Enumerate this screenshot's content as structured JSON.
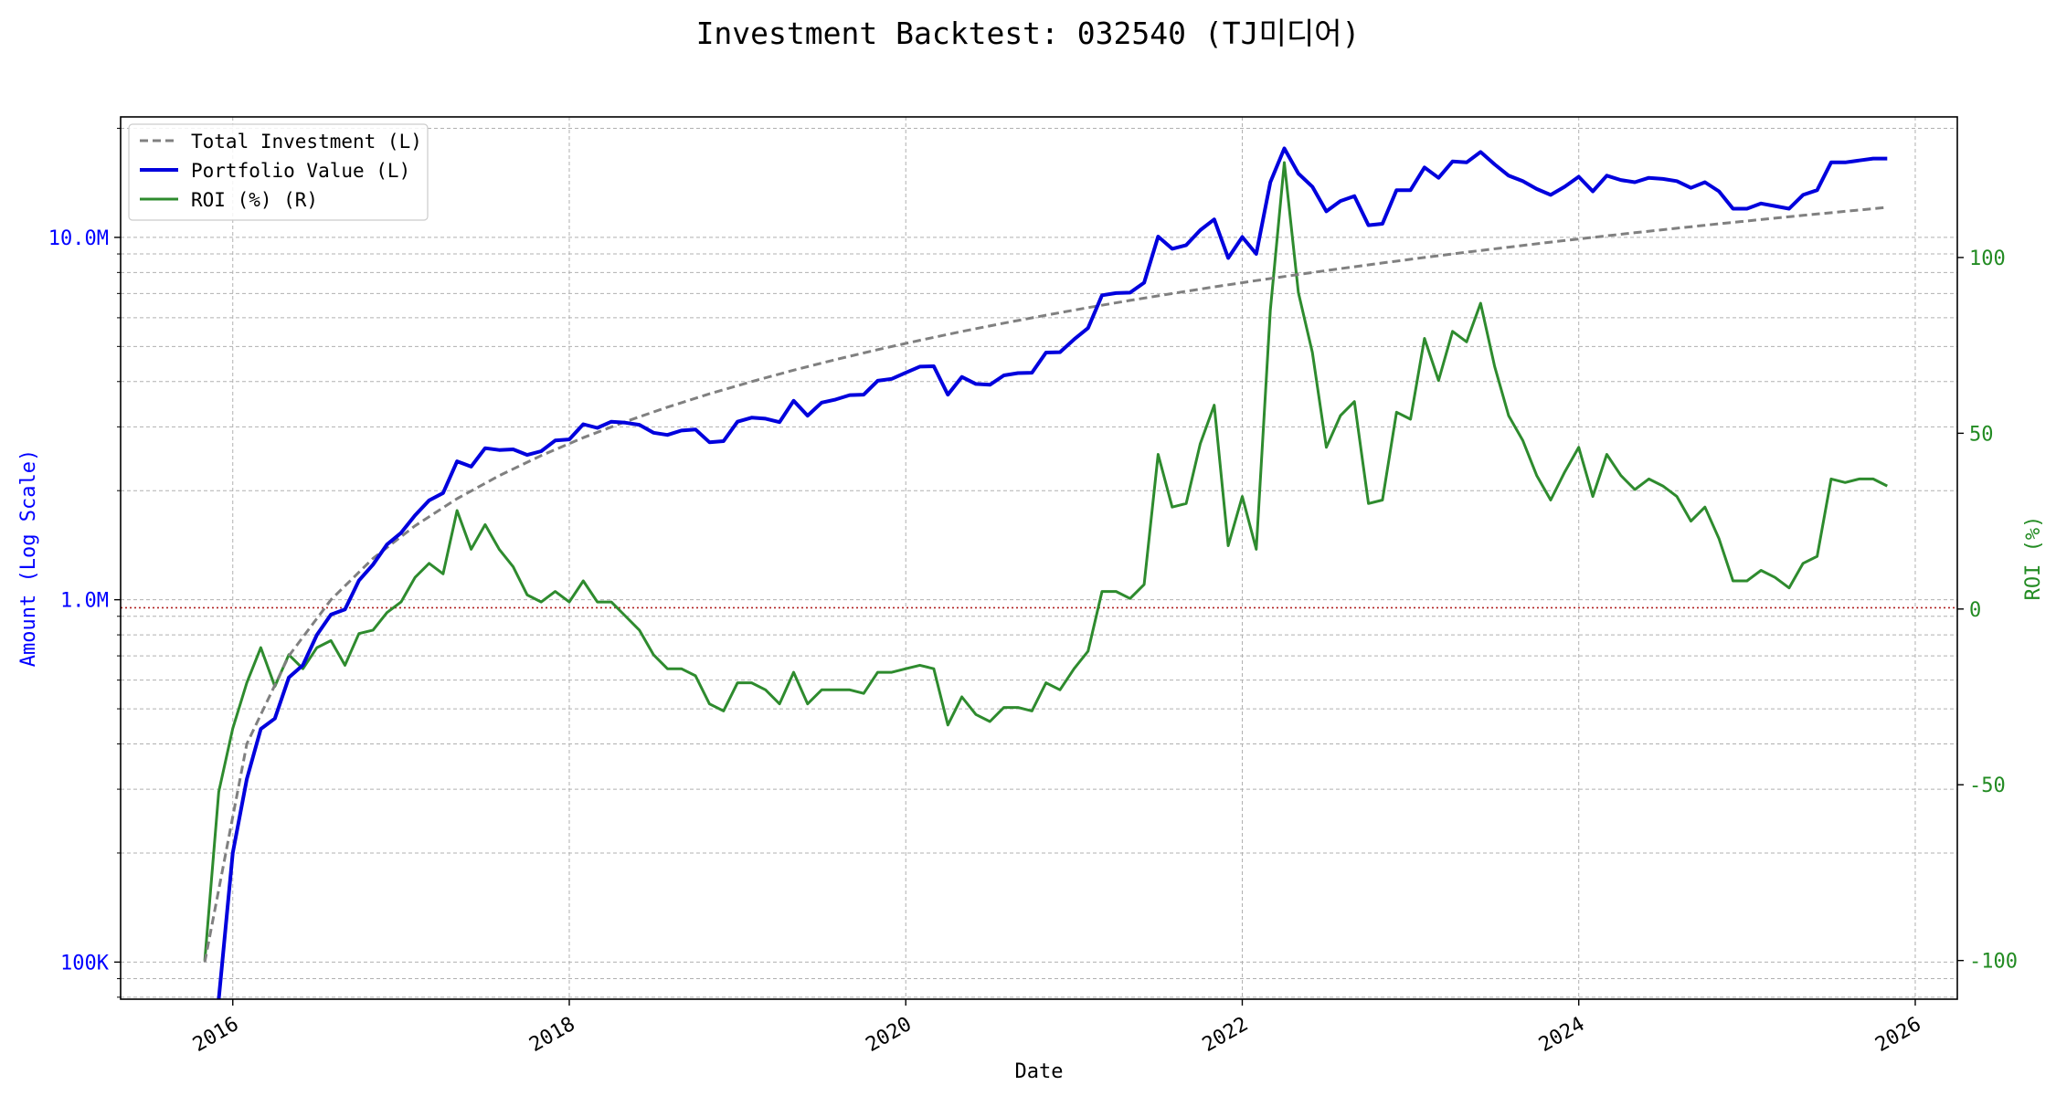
{
  "chart_data": {
    "type": "line",
    "title": "Investment Backtest: 032540 (TJ미디어)",
    "xlabel": "Date",
    "ylabel_left": "Amount (Log Scale)",
    "ylabel_right": "ROI (%)",
    "x_ticks": [
      "2016",
      "2018",
      "2020",
      "2022",
      "2024",
      "2026"
    ],
    "y_left_ticks": [
      {
        "value": 100000,
        "label": "100K"
      },
      {
        "value": 1000000,
        "label": "1.0M"
      },
      {
        "value": 10000000,
        "label": "10.0M"
      }
    ],
    "y_right_ticks": [
      {
        "value": -100,
        "label": "-100"
      },
      {
        "value": -50,
        "label": "-50"
      },
      {
        "value": 0,
        "label": "0"
      },
      {
        "value": 50,
        "label": "50"
      },
      {
        "value": 100,
        "label": "100"
      }
    ],
    "y_left_scale": "log",
    "y_left_range": [
      79000,
      21500000
    ],
    "y_right_range": [
      -111,
      140
    ],
    "x_range": [
      "2015-05-01",
      "2026-04-01"
    ],
    "grid": true,
    "legend_position": "top-left",
    "reference_line": {
      "axis": "left",
      "value": 950000,
      "style": "dotted",
      "color": "#b22222"
    },
    "colors": {
      "total_investment": "#808080",
      "portfolio_value": "#0000dd",
      "roi": "#2e8b2e"
    },
    "legend": [
      "Total Investment (L)",
      "Portfolio Value (L)",
      "ROI (%) (R)"
    ],
    "series": [
      {
        "name": "Total Investment (L)",
        "axis": "left",
        "style": "dashed",
        "x": [
          "2015-11",
          "2016-02",
          "2016-05",
          "2016-08",
          "2016-11",
          "2017-02",
          "2017-05",
          "2017-08",
          "2017-11",
          "2018-02",
          "2018-05",
          "2018-08",
          "2018-11",
          "2019-02",
          "2019-05",
          "2019-08",
          "2019-11",
          "2020-02",
          "2020-05",
          "2020-08",
          "2020-11",
          "2021-02",
          "2021-05",
          "2021-08",
          "2021-11",
          "2022-02",
          "2022-05",
          "2022-08",
          "2022-11",
          "2023-02",
          "2023-05",
          "2023-08",
          "2023-11",
          "2024-02",
          "2024-05",
          "2024-08",
          "2024-11",
          "2025-02",
          "2025-05",
          "2025-08",
          "2025-11"
        ],
        "y": [
          100000,
          400000,
          700000,
          1000000,
          1300000,
          1600000,
          1900000,
          2200000,
          2500000,
          2800000,
          3100000,
          3400000,
          3700000,
          4000000,
          4300000,
          4600000,
          4900000,
          5200000,
          5500000,
          5800000,
          6100000,
          6400000,
          6700000,
          7000000,
          7300000,
          7600000,
          7900000,
          8200000,
          8500000,
          8800000,
          9100000,
          9400000,
          9700000,
          10000000,
          10300000,
          10600000,
          10900000,
          11200000,
          11500000,
          11800000,
          12100000
        ]
      },
      {
        "name": "Portfolio Value (L)",
        "axis": "left",
        "style": "solid",
        "x": [
          "2015-12",
          "2016-01",
          "2016-02",
          "2016-03",
          "2016-04",
          "2016-05",
          "2016-06",
          "2016-07",
          "2016-08",
          "2016-09",
          "2016-10",
          "2016-11",
          "2016-12",
          "2017-01",
          "2017-02",
          "2017-03",
          "2017-04",
          "2017-05",
          "2017-06",
          "2017-07",
          "2017-08",
          "2017-09",
          "2017-10",
          "2017-11",
          "2017-12",
          "2018-01",
          "2018-02",
          "2018-03",
          "2018-04",
          "2018-05",
          "2018-06",
          "2018-07",
          "2018-08",
          "2018-09",
          "2018-10",
          "2018-11",
          "2018-12",
          "2019-01",
          "2019-02",
          "2019-03",
          "2019-04",
          "2019-05",
          "2019-06",
          "2019-07",
          "2019-08",
          "2019-09",
          "2019-10",
          "2019-11",
          "2019-12",
          "2020-01",
          "2020-02",
          "2020-03",
          "2020-04",
          "2020-05",
          "2020-06",
          "2020-07",
          "2020-08",
          "2020-09",
          "2020-10",
          "2020-11",
          "2020-12",
          "2021-01",
          "2021-02",
          "2021-03",
          "2021-04",
          "2021-05",
          "2021-06",
          "2021-07",
          "2021-08",
          "2021-09",
          "2021-10",
          "2021-11",
          "2021-12",
          "2022-01",
          "2022-02",
          "2022-03",
          "2022-04",
          "2022-05",
          "2022-06",
          "2022-07",
          "2022-08",
          "2022-09",
          "2022-10",
          "2022-11",
          "2022-12",
          "2023-01",
          "2023-02",
          "2023-03",
          "2023-04",
          "2023-05",
          "2023-06",
          "2023-07",
          "2023-08",
          "2023-09",
          "2023-10",
          "2023-11",
          "2023-12",
          "2024-01",
          "2024-02",
          "2024-03",
          "2024-04",
          "2024-05",
          "2024-06",
          "2024-07",
          "2024-08",
          "2024-09",
          "2024-10",
          "2024-11",
          "2024-12",
          "2025-01",
          "2025-02",
          "2025-03",
          "2025-04",
          "2025-05",
          "2025-06",
          "2025-07",
          "2025-08",
          "2025-09",
          "2025-10",
          "2025-11"
        ],
        "y": [
          75000,
          200000,
          320000,
          440000,
          470000,
          610000,
          660000,
          800000,
          910000,
          940000,
          1130000,
          1250000,
          1420000,
          1530000,
          1710000,
          1880000,
          1970000,
          2410000,
          2330000,
          2620000,
          2590000,
          2600000,
          2510000,
          2570000,
          2750000,
          2770000,
          3050000,
          2980000,
          3100000,
          3080000,
          3040000,
          2890000,
          2850000,
          2930000,
          2950000,
          2720000,
          2740000,
          3100000,
          3180000,
          3160000,
          3090000,
          3540000,
          3220000,
          3500000,
          3570000,
          3670000,
          3680000,
          4020000,
          4070000,
          4230000,
          4400000,
          4410000,
          3680000,
          4120000,
          3940000,
          3920000,
          4160000,
          4220000,
          4230000,
          4810000,
          4820000,
          5230000,
          5620000,
          6920000,
          7020000,
          7040000,
          7500000,
          10050000,
          9300000,
          9520000,
          10470000,
          11210000,
          8770000,
          10020000,
          9000000,
          14200000,
          17600000,
          15000000,
          13800000,
          11800000,
          12600000,
          13000000,
          10800000,
          10900000,
          13500000,
          13500000,
          15600000,
          14600000,
          16200000,
          16100000,
          17200000,
          15900000,
          14800000,
          14300000,
          13600000,
          13100000,
          13800000,
          14700000,
          13400000,
          14800000,
          14400000,
          14200000,
          14600000,
          14500000,
          14300000,
          13700000,
          14200000,
          13400000,
          12000000,
          12000000,
          12400000,
          12200000,
          12000000,
          13100000,
          13500000,
          16100000,
          16100000,
          16300000,
          16500000,
          16500000
        ]
      },
      {
        "name": "ROI (%) (R)",
        "axis": "right",
        "style": "solid",
        "x": [
          "2015-11",
          "2015-12",
          "2016-01",
          "2016-02",
          "2016-03",
          "2016-04",
          "2016-05",
          "2016-06",
          "2016-07",
          "2016-08",
          "2016-09",
          "2016-10",
          "2016-11",
          "2016-12",
          "2017-01",
          "2017-02",
          "2017-03",
          "2017-04",
          "2017-05",
          "2017-06",
          "2017-07",
          "2017-08",
          "2017-09",
          "2017-10",
          "2017-11",
          "2017-12",
          "2018-01",
          "2018-02",
          "2018-03",
          "2018-04",
          "2018-05",
          "2018-06",
          "2018-07",
          "2018-08",
          "2018-09",
          "2018-10",
          "2018-11",
          "2018-12",
          "2019-01",
          "2019-02",
          "2019-03",
          "2019-04",
          "2019-05",
          "2019-06",
          "2019-07",
          "2019-08",
          "2019-09",
          "2019-10",
          "2019-11",
          "2019-12",
          "2020-01",
          "2020-02",
          "2020-03",
          "2020-04",
          "2020-05",
          "2020-06",
          "2020-07",
          "2020-08",
          "2020-09",
          "2020-10",
          "2020-11",
          "2020-12",
          "2021-01",
          "2021-02",
          "2021-03",
          "2021-04",
          "2021-05",
          "2021-06",
          "2021-07",
          "2021-08",
          "2021-09",
          "2021-10",
          "2021-11",
          "2021-12",
          "2022-01",
          "2022-02",
          "2022-03",
          "2022-04",
          "2022-05",
          "2022-06",
          "2022-07",
          "2022-08",
          "2022-09",
          "2022-10",
          "2022-11",
          "2022-12",
          "2023-01",
          "2023-02",
          "2023-03",
          "2023-04",
          "2023-05",
          "2023-06",
          "2023-07",
          "2023-08",
          "2023-09",
          "2023-10",
          "2023-11",
          "2023-12",
          "2024-01",
          "2024-02",
          "2024-03",
          "2024-04",
          "2024-05",
          "2024-06",
          "2024-07",
          "2024-08",
          "2024-09",
          "2024-10",
          "2024-11",
          "2024-12",
          "2025-01",
          "2025-02",
          "2025-03",
          "2025-04",
          "2025-05",
          "2025-06",
          "2025-07",
          "2025-08",
          "2025-09",
          "2025-10",
          "2025-11"
        ],
        "y": [
          -100,
          -52,
          -34,
          -21,
          -11,
          -22,
          -13,
          -17,
          -11,
          -9,
          -16,
          -7,
          -6,
          -1,
          2,
          9,
          13,
          10,
          28,
          17,
          24,
          17,
          12,
          4,
          2,
          5,
          2,
          8,
          2,
          2,
          -2,
          -6,
          -13,
          -17,
          -17,
          -19,
          -27,
          -29,
          -21,
          -21,
          -23,
          -27,
          -18,
          -27,
          -23,
          -23,
          -23,
          -24,
          -18,
          -18,
          -17,
          -16,
          -17,
          -33,
          -25,
          -30,
          -32,
          -28,
          -28,
          -29,
          -21,
          -23,
          -17,
          -12,
          5,
          5,
          3,
          7,
          44,
          29,
          30,
          47,
          58,
          18,
          32,
          17,
          85,
          127,
          90,
          73,
          46,
          55,
          59,
          30,
          31,
          56,
          54,
          77,
          65,
          79,
          76,
          87,
          69,
          55,
          48,
          38,
          31,
          39,
          46,
          32,
          44,
          38,
          34,
          37,
          35,
          32,
          25,
          29,
          20,
          8,
          8,
          11,
          9,
          6,
          13,
          15,
          37,
          36,
          37,
          37,
          35
        ]
      }
    ]
  }
}
